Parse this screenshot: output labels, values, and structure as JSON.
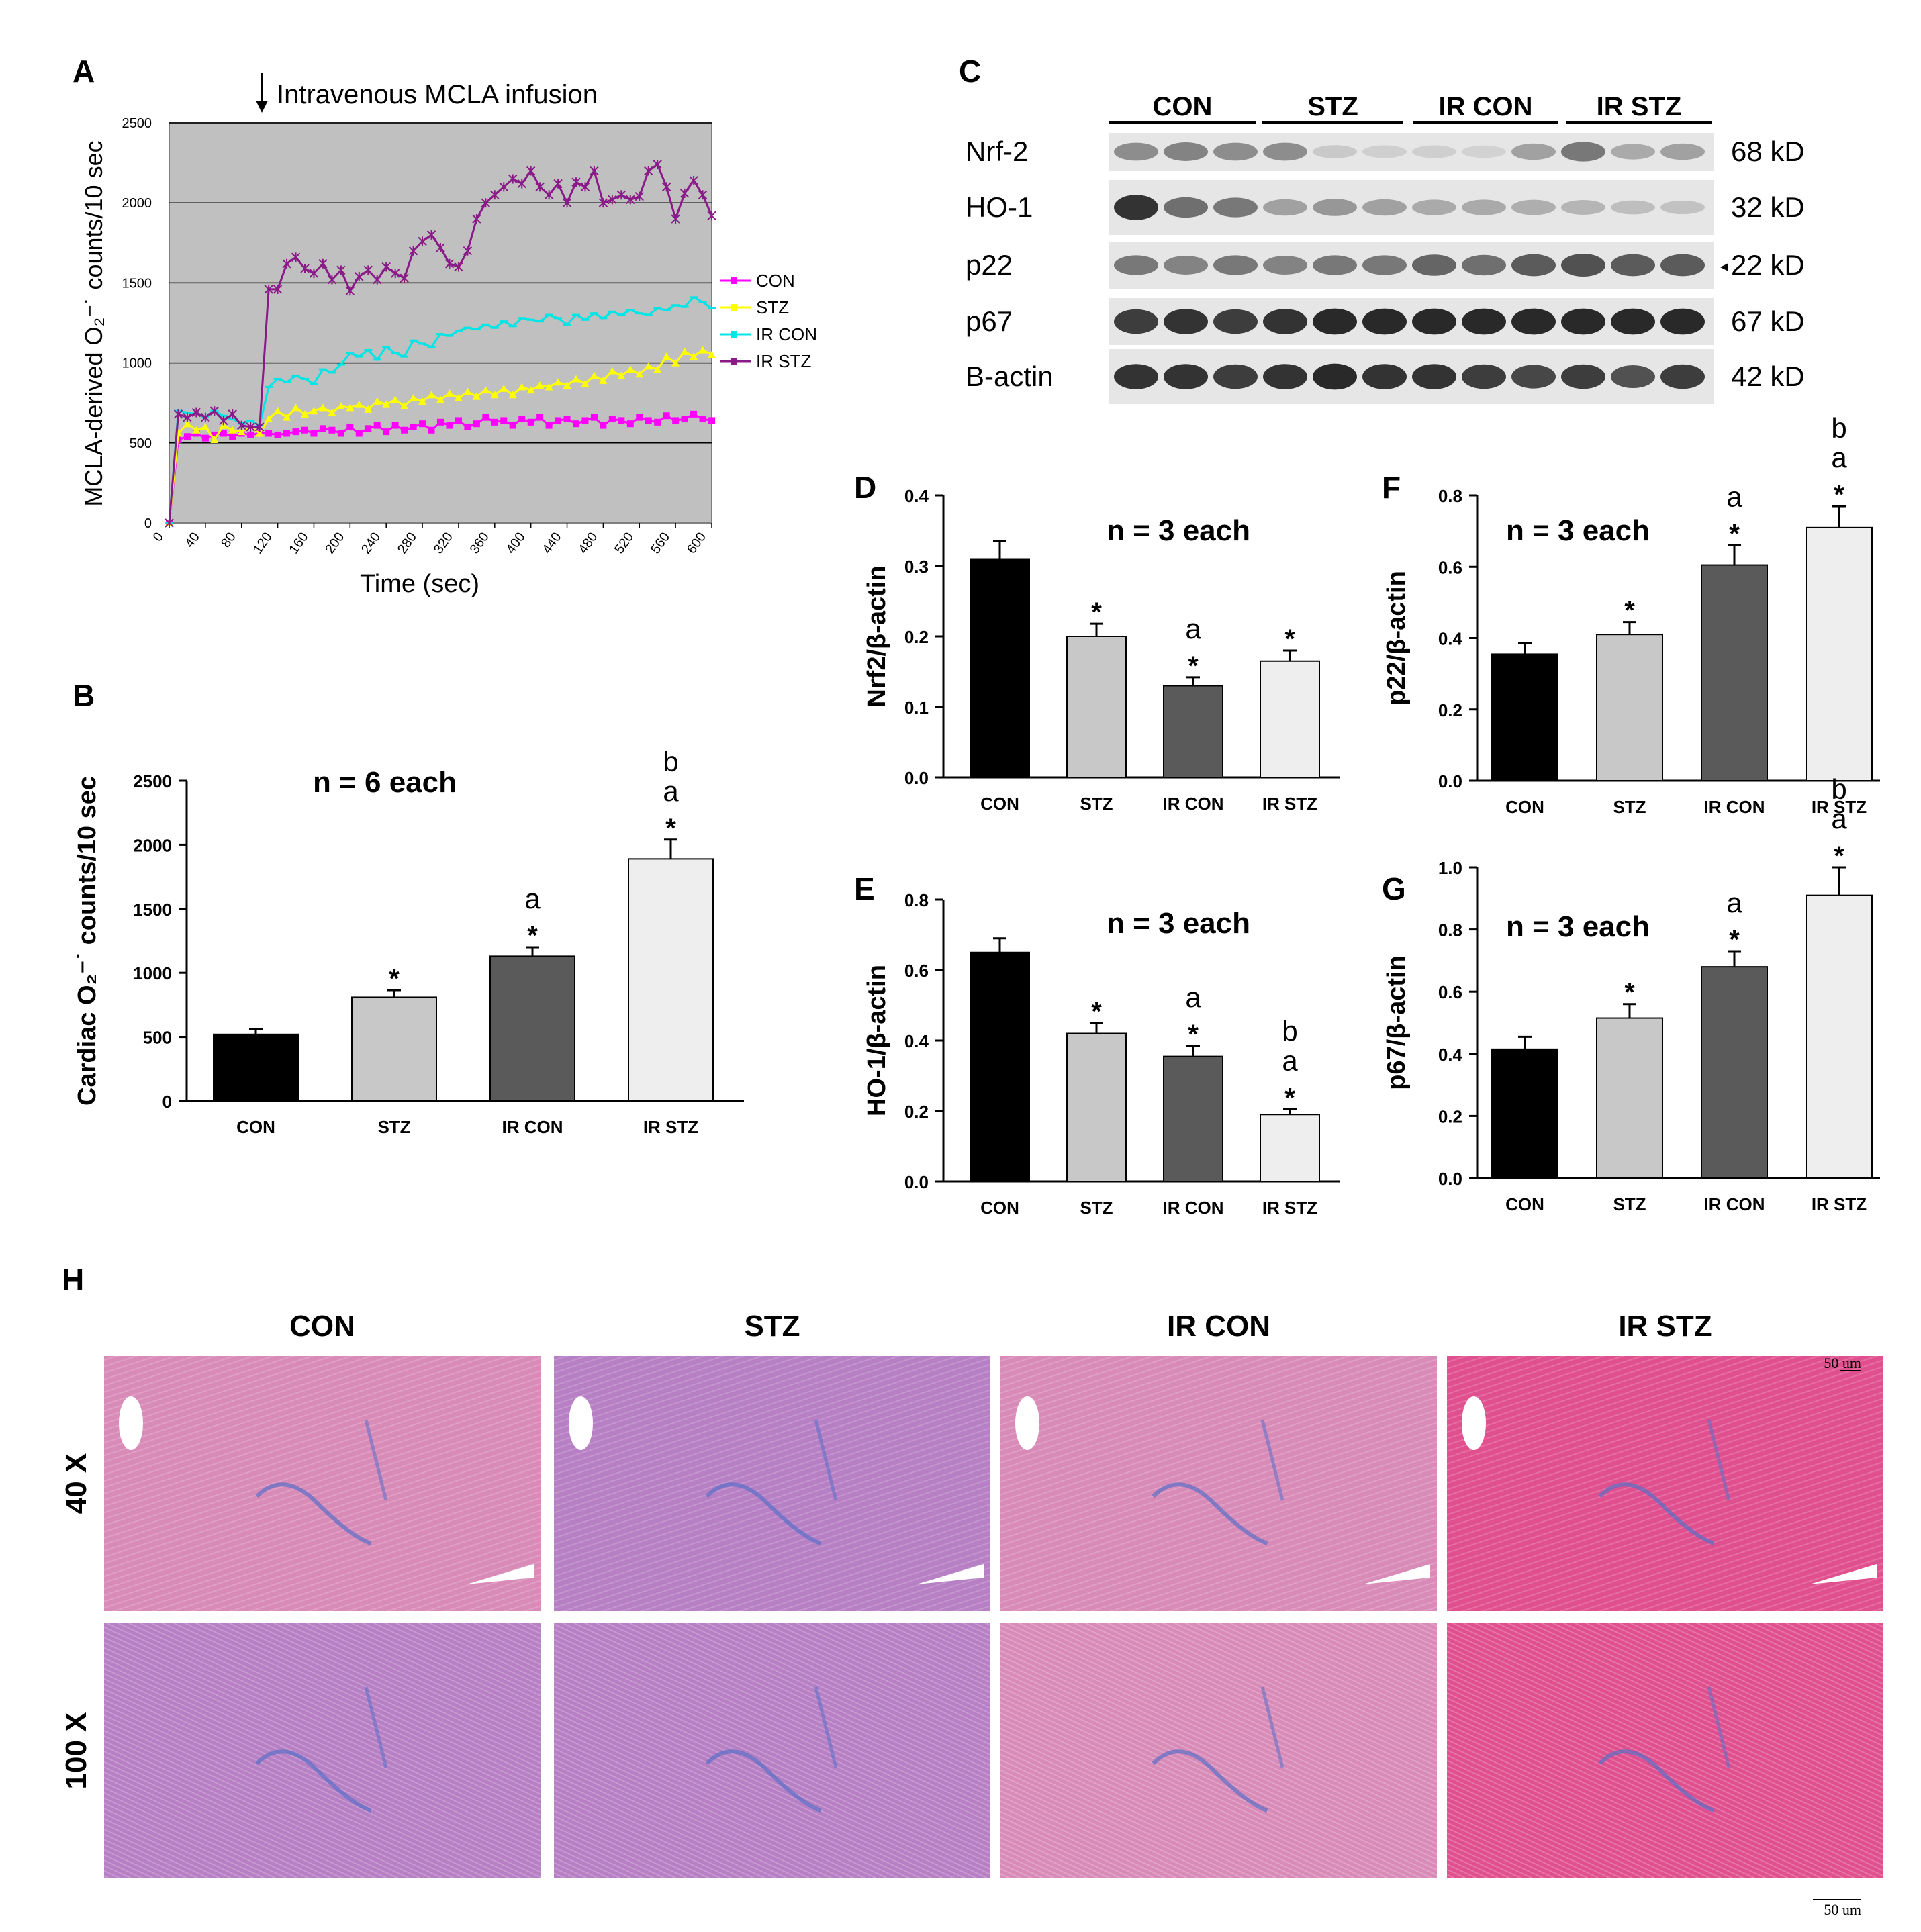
{
  "colors": {
    "CON": "#000000",
    "STZ": "#c8c8c8",
    "IR CON": "#5a5a5a",
    "IR STZ": "#eeeeee",
    "plot_bg": "#c0c0c0",
    "line_CON": "#ff00ff",
    "line_STZ": "#ffff00",
    "line_IRCON": "#00e5e5",
    "line_IRSTZ": "#8b1a89",
    "tissue_pink": "#d98bb8",
    "tissue_violet": "#b77fc4",
    "tissue_deep": "#e0508e",
    "collagen_blue": "#5a6fc8"
  },
  "chart_data": [
    {
      "panel": "A",
      "type": "line",
      "annotation": "Intravenous MCLA infusion",
      "xlabel": "Time (sec)",
      "ylabel": "MCLA-derived O₂⁻˙ counts/10 sec",
      "xlim": [
        0,
        600
      ],
      "ylim": [
        0,
        2500
      ],
      "yticks": [
        "0",
        "500",
        "1000",
        "1500",
        "2000",
        "2500"
      ],
      "xticks": [
        "0",
        "40",
        "80",
        "120",
        "160",
        "200",
        "240",
        "280",
        "320",
        "360",
        "400",
        "440",
        "480",
        "520",
        "560",
        "600"
      ],
      "grid": true,
      "legend": "right",
      "x": [
        0,
        10,
        20,
        30,
        40,
        50,
        60,
        70,
        80,
        90,
        100,
        110,
        120,
        130,
        140,
        150,
        160,
        170,
        180,
        190,
        200,
        210,
        220,
        230,
        240,
        250,
        260,
        270,
        280,
        290,
        300,
        310,
        320,
        330,
        340,
        350,
        360,
        370,
        380,
        390,
        400,
        410,
        420,
        430,
        440,
        450,
        460,
        470,
        480,
        490,
        500,
        510,
        520,
        530,
        540,
        550,
        560,
        570,
        580,
        590,
        600
      ],
      "series": [
        {
          "name": "CON",
          "values": [
            0,
            520,
            540,
            560,
            530,
            550,
            560,
            540,
            560,
            550,
            560,
            560,
            550,
            560,
            570,
            580,
            560,
            590,
            580,
            560,
            600,
            560,
            590,
            610,
            570,
            610,
            580,
            600,
            620,
            580,
            630,
            610,
            640,
            600,
            620,
            660,
            630,
            640,
            610,
            650,
            630,
            660,
            610,
            640,
            650,
            620,
            640,
            660,
            610,
            650,
            640,
            620,
            660,
            640,
            630,
            670,
            640,
            650,
            680,
            650,
            640
          ]
        },
        {
          "name": "STZ",
          "values": [
            0,
            560,
            620,
            580,
            600,
            520,
            610,
            580,
            570,
            600,
            560,
            650,
            700,
            660,
            720,
            680,
            700,
            720,
            690,
            730,
            720,
            740,
            710,
            760,
            740,
            770,
            730,
            780,
            760,
            800,
            770,
            810,
            780,
            820,
            790,
            830,
            800,
            840,
            800,
            850,
            830,
            860,
            850,
            880,
            860,
            900,
            870,
            920,
            890,
            950,
            920,
            960,
            930,
            980,
            960,
            1040,
            1000,
            1070,
            1040,
            1080,
            1050
          ]
        },
        {
          "name": "IR CON",
          "values": [
            0,
            700,
            690,
            680,
            660,
            700,
            670,
            650,
            620,
            640,
            610,
            850,
            900,
            880,
            920,
            900,
            870,
            960,
            940,
            990,
            1060,
            1040,
            1080,
            1020,
            1100,
            1060,
            1040,
            1140,
            1120,
            1100,
            1180,
            1170,
            1200,
            1220,
            1210,
            1240,
            1220,
            1260,
            1230,
            1280,
            1270,
            1260,
            1300,
            1280,
            1240,
            1300,
            1270,
            1310,
            1280,
            1320,
            1300,
            1330,
            1310,
            1300,
            1340,
            1330,
            1360,
            1350,
            1410,
            1380,
            1340
          ]
        },
        {
          "name": "IR STZ",
          "values": [
            0,
            680,
            660,
            690,
            660,
            700,
            640,
            680,
            610,
            600,
            600,
            1460,
            1460,
            1620,
            1660,
            1590,
            1560,
            1620,
            1520,
            1580,
            1450,
            1540,
            1580,
            1520,
            1600,
            1560,
            1530,
            1700,
            1760,
            1800,
            1720,
            1620,
            1600,
            1700,
            1900,
            2000,
            2050,
            2100,
            2150,
            2120,
            2200,
            2100,
            2050,
            2120,
            2000,
            2130,
            2100,
            2200,
            2000,
            2020,
            2050,
            2020,
            2040,
            2200,
            2240,
            2100,
            1900,
            2060,
            2140,
            2050,
            1920
          ]
        }
      ]
    },
    {
      "panel": "B",
      "type": "bar",
      "categories": [
        "CON",
        "STZ",
        "IR CON",
        "IR STZ"
      ],
      "values": [
        520,
        810,
        1130,
        1890
      ],
      "errors": [
        40,
        55,
        70,
        150
      ],
      "sig": [
        [],
        [
          "*"
        ],
        [
          "*",
          "a"
        ],
        [
          "*",
          "a",
          "b"
        ]
      ],
      "ylabel": "Cardiac O₂⁻˙ counts/10 sec",
      "note": "n = 6 each",
      "ylim": [
        0,
        2500
      ],
      "yticks": [
        "0",
        "500",
        "1000",
        "1500",
        "2000",
        "2500"
      ]
    },
    {
      "panel": "D",
      "type": "bar",
      "categories": [
        "CON",
        "STZ",
        "IR CON",
        "IR STZ"
      ],
      "values": [
        0.31,
        0.2,
        0.13,
        0.165
      ],
      "errors": [
        0.025,
        0.018,
        0.012,
        0.015
      ],
      "sig": [
        [],
        [
          "*"
        ],
        [
          "*",
          "a"
        ],
        [
          "*"
        ]
      ],
      "ylabel": "Nrf2/β-actin",
      "note": "n = 3 each",
      "ylim": [
        0,
        0.4
      ],
      "yticks": [
        "0.0",
        "0.1",
        "0.2",
        "0.3",
        "0.4"
      ]
    },
    {
      "panel": "E",
      "type": "bar",
      "categories": [
        "CON",
        "STZ",
        "IR CON",
        "IR STZ"
      ],
      "values": [
        0.65,
        0.42,
        0.355,
        0.19
      ],
      "errors": [
        0.04,
        0.03,
        0.03,
        0.015
      ],
      "sig": [
        [],
        [
          "*"
        ],
        [
          "*",
          "a"
        ],
        [
          "*",
          "a",
          "b"
        ]
      ],
      "ylabel": "HO-1/β-actin",
      "note": "n = 3 each",
      "ylim": [
        0,
        0.8
      ],
      "yticks": [
        "0.0",
        "0.2",
        "0.4",
        "0.6",
        "0.8"
      ]
    },
    {
      "panel": "F",
      "type": "bar",
      "categories": [
        "CON",
        "STZ",
        "IR CON",
        "IR STZ"
      ],
      "values": [
        0.355,
        0.41,
        0.605,
        0.71
      ],
      "errors": [
        0.03,
        0.035,
        0.055,
        0.06
      ],
      "sig": [
        [],
        [
          "*"
        ],
        [
          "*",
          "a"
        ],
        [
          "*",
          "a",
          "b"
        ]
      ],
      "ylabel": "p22/β-actin",
      "note": "n = 3 each",
      "ylim": [
        0,
        0.8
      ],
      "yticks": [
        "0.0",
        "0.2",
        "0.4",
        "0.6",
        "0.8"
      ]
    },
    {
      "panel": "G",
      "type": "bar",
      "categories": [
        "CON",
        "STZ",
        "IR CON",
        "IR STZ"
      ],
      "values": [
        0.415,
        0.515,
        0.68,
        0.91
      ],
      "errors": [
        0.04,
        0.045,
        0.05,
        0.09
      ],
      "sig": [
        [],
        [
          "*"
        ],
        [
          "*",
          "a"
        ],
        [
          "*",
          "a",
          "b"
        ]
      ],
      "ylabel": "p67/β-actin",
      "note": "n = 3 each",
      "ylim": [
        0,
        1.0
      ],
      "yticks": [
        "0.0",
        "0.2",
        "0.4",
        "0.6",
        "0.8",
        "1.0"
      ]
    }
  ],
  "western_blot": {
    "panel": "C",
    "groups": [
      "CON",
      "STZ",
      "IR CON",
      "IR STZ"
    ],
    "proteins": [
      {
        "name": "Nrf-2",
        "mw": "68 kD",
        "intensity": [
          0.45,
          0.5,
          0.45,
          0.45,
          0.15,
          0.12,
          0.12,
          0.1,
          0.35,
          0.55,
          0.3,
          0.35
        ]
      },
      {
        "name": "HO-1",
        "mw": "32 kD",
        "intensity": [
          0.9,
          0.6,
          0.55,
          0.35,
          0.4,
          0.35,
          0.3,
          0.3,
          0.28,
          0.25,
          0.2,
          0.18
        ]
      },
      {
        "name": "p22",
        "mw": "22 kD",
        "intensity": [
          0.55,
          0.5,
          0.55,
          0.5,
          0.55,
          0.55,
          0.65,
          0.6,
          0.7,
          0.75,
          0.7,
          0.7
        ]
      },
      {
        "name": "p67",
        "mw": "67 kD",
        "intensity": [
          0.85,
          0.9,
          0.85,
          0.9,
          0.95,
          0.95,
          0.95,
          0.95,
          0.95,
          0.95,
          0.95,
          0.95
        ]
      },
      {
        "name": "B-actin",
        "mw": "42 kD",
        "intensity": [
          0.9,
          0.9,
          0.85,
          0.9,
          0.95,
          0.9,
          0.9,
          0.85,
          0.8,
          0.85,
          0.75,
          0.85
        ]
      }
    ]
  },
  "histology": {
    "panel": "H",
    "columns": [
      "CON",
      "STZ",
      "IR CON",
      "IR STZ"
    ],
    "rows": [
      "40 X",
      "100 X"
    ],
    "scale_bar": "50 um"
  },
  "labels": {
    "A": "A",
    "B": "B",
    "C": "C",
    "D": "D",
    "E": "E",
    "F": "F",
    "G": "G",
    "H": "H"
  }
}
